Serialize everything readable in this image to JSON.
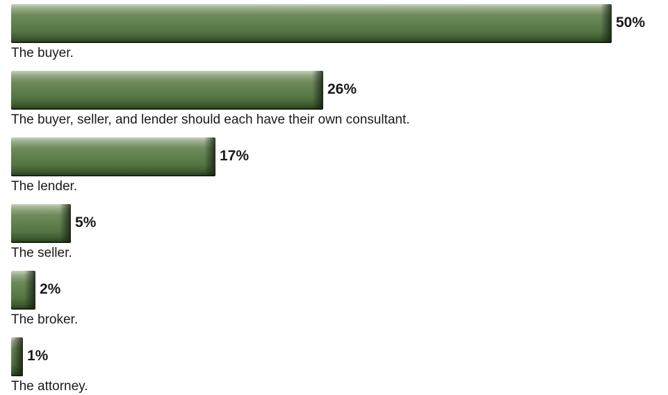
{
  "chart_data": {
    "type": "bar",
    "orientation": "horizontal",
    "categories": [
      "The buyer.",
      "The buyer, seller, and lender should each have their own consultant.",
      "The lender.",
      "The seller.",
      "The broker.",
      "The attorney."
    ],
    "values": [
      50,
      26,
      17,
      5,
      2,
      1
    ],
    "value_labels": [
      "50%",
      "26%",
      "17%",
      "5%",
      "2%",
      "1%"
    ],
    "unit": "%",
    "xlim": [
      0,
      50
    ],
    "grid": false,
    "legend": "none"
  },
  "colors": {
    "bar": "#60804e",
    "text": "#1a1a1a",
    "background": "#ffffff"
  }
}
